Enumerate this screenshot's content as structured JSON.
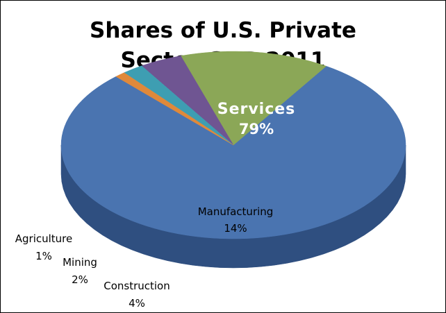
{
  "chart_data": {
    "type": "pie",
    "title_lines": [
      "Shares of U.S. Private",
      "Sector GDP 2011"
    ],
    "slices": [
      {
        "name": "Services",
        "value": 79,
        "value_label": "79%",
        "color": "#4A74B0",
        "side_color": "#2F4F80"
      },
      {
        "name": "Manufacturing",
        "value": 14,
        "value_label": "14%",
        "color": "#8BA757",
        "side_color": "#617A35"
      },
      {
        "name": "Construction",
        "value": 4,
        "value_label": "4%",
        "color": "#6F5592",
        "side_color": "#4F3A6E"
      },
      {
        "name": "Mining",
        "value": 2,
        "value_label": "2%",
        "color": "#3E9EB2",
        "side_color": "#2A7888"
      },
      {
        "name": "Agriculture",
        "value": 1,
        "value_label": "1%",
        "color": "#E0893A",
        "side_color": "#B8651E"
      }
    ],
    "style": "3d",
    "legend": "none"
  }
}
